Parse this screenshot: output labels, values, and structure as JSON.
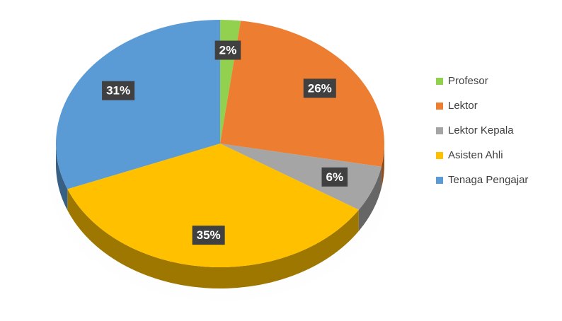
{
  "chart_data": {
    "type": "pie",
    "categories": [
      "Profesor",
      "Lektor",
      "Lektor Kepala",
      "Asisten Ahli",
      "Tenaga Pengajar"
    ],
    "values": [
      2,
      26,
      6,
      35,
      31
    ],
    "value_labels": [
      "2%",
      "26%",
      "6%",
      "35%",
      "31%"
    ],
    "colors": [
      "#92d050",
      "#ed7d31",
      "#a5a5a5",
      "#ffc000",
      "#5b9bd5"
    ],
    "legend": "right"
  }
}
